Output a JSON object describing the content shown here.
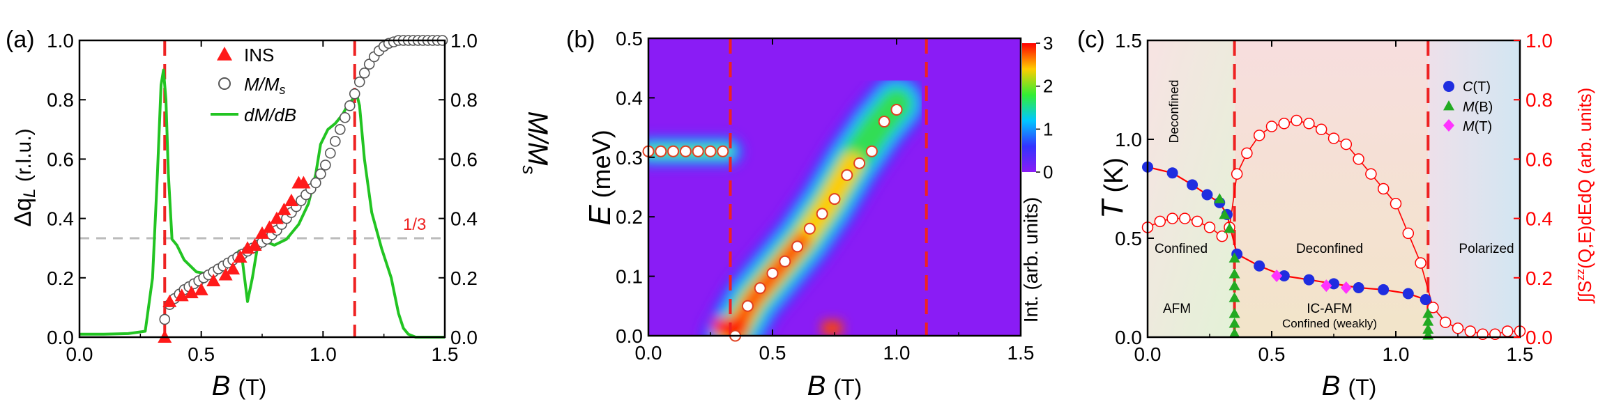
{
  "colors": {
    "ins": "#ff1a1a",
    "circle_edge": "#555555",
    "dmdb": "#22c422",
    "dashed_red": "#ee2222",
    "dashed_grey": "#bbbbbb",
    "right_axis_red": "#ff0000",
    "c_t": "#1f2de0",
    "m_b": "#22aa22",
    "m_t": "#ff33ff",
    "background_purple": "#8a1cf5"
  },
  "chart_data": [
    {
      "panel": "(a)",
      "type": "scatter",
      "xlabel_main": "B",
      "xlabel_unit": "(T)",
      "ylabel_left_main": "Δq",
      "ylabel_left_sub": "L",
      "ylabel_left_unit": "(r.l.u.)",
      "ylabel_right_main": "M/M",
      "ylabel_right_sub": "s",
      "xlim": [
        0,
        1.5
      ],
      "ylim_left": [
        0,
        1.0
      ],
      "ylim_right": [
        0,
        1.0
      ],
      "xticks": [
        "0.0",
        "0.5",
        "1.0",
        "1.5"
      ],
      "yticks_left": [
        "0.0",
        "0.2",
        "0.4",
        "0.6",
        "0.8",
        "1.0"
      ],
      "yticks_right": [
        "0.0",
        "0.2",
        "0.4",
        "0.6",
        "0.8",
        "1.0"
      ],
      "reference_line_label": "1/3",
      "reference_line_y": 0.3333,
      "vertical_lines_x": [
        0.35,
        1.13
      ],
      "legend": [
        {
          "label": "INS",
          "marker": "triangle"
        },
        {
          "label_main": "M/M",
          "label_sub": "s",
          "marker": "circle"
        },
        {
          "label_main": "dM/dB",
          "marker": "line"
        }
      ],
      "series": [
        {
          "name": "INS",
          "axis": "left",
          "x": [
            0.35,
            0.37,
            0.42,
            0.46,
            0.5,
            0.55,
            0.6,
            0.63,
            0.66,
            0.69,
            0.72,
            0.75,
            0.78,
            0.81,
            0.84,
            0.87,
            0.9,
            0.92
          ],
          "y": [
            0.0,
            0.12,
            0.14,
            0.15,
            0.16,
            0.19,
            0.21,
            0.23,
            0.27,
            0.3,
            0.31,
            0.35,
            0.37,
            0.4,
            0.43,
            0.46,
            0.52,
            0.52
          ]
        },
        {
          "name": "M/Ms",
          "axis": "right",
          "x": [
            0.35,
            0.37,
            0.39,
            0.41,
            0.43,
            0.45,
            0.47,
            0.49,
            0.51,
            0.53,
            0.55,
            0.57,
            0.59,
            0.61,
            0.63,
            0.65,
            0.67,
            0.69,
            0.71,
            0.73,
            0.75,
            0.77,
            0.79,
            0.81,
            0.83,
            0.85,
            0.87,
            0.89,
            0.91,
            0.93,
            0.95,
            0.97,
            0.99,
            1.01,
            1.03,
            1.05,
            1.07,
            1.09,
            1.11,
            1.13,
            1.15,
            1.17,
            1.19,
            1.21,
            1.23,
            1.25,
            1.27,
            1.29,
            1.31,
            1.33,
            1.35,
            1.37,
            1.39,
            1.41,
            1.43,
            1.45,
            1.47,
            1.49
          ],
          "y": [
            0.06,
            0.11,
            0.13,
            0.145,
            0.16,
            0.17,
            0.18,
            0.19,
            0.2,
            0.21,
            0.22,
            0.23,
            0.24,
            0.25,
            0.26,
            0.27,
            0.28,
            0.29,
            0.3,
            0.31,
            0.32,
            0.33,
            0.345,
            0.36,
            0.38,
            0.4,
            0.42,
            0.44,
            0.46,
            0.48,
            0.5,
            0.52,
            0.55,
            0.58,
            0.62,
            0.66,
            0.7,
            0.74,
            0.78,
            0.82,
            0.86,
            0.89,
            0.92,
            0.945,
            0.965,
            0.98,
            0.99,
            0.995,
            1.0,
            1.0,
            1.0,
            1.0,
            1.0,
            1.0,
            1.0,
            1.0,
            1.0,
            1.0
          ]
        },
        {
          "name": "dM/dB",
          "axis": "right",
          "x": [
            0.0,
            0.1,
            0.2,
            0.27,
            0.3,
            0.32,
            0.335,
            0.345,
            0.355,
            0.365,
            0.38,
            0.4,
            0.43,
            0.48,
            0.55,
            0.6,
            0.63,
            0.655,
            0.67,
            0.69,
            0.71,
            0.73,
            0.75,
            0.77,
            0.8,
            0.85,
            0.9,
            0.94,
            0.97,
            0.99,
            1.02,
            1.05,
            1.08,
            1.1,
            1.12,
            1.135,
            1.15,
            1.17,
            1.2,
            1.24,
            1.28,
            1.31,
            1.33,
            1.35,
            1.38,
            1.42,
            1.5
          ],
          "y": [
            0.01,
            0.01,
            0.012,
            0.02,
            0.2,
            0.55,
            0.85,
            0.9,
            0.8,
            0.55,
            0.33,
            0.31,
            0.26,
            0.22,
            0.21,
            0.23,
            0.27,
            0.29,
            0.25,
            0.12,
            0.2,
            0.3,
            0.34,
            0.32,
            0.31,
            0.33,
            0.38,
            0.45,
            0.55,
            0.65,
            0.7,
            0.72,
            0.75,
            0.78,
            0.8,
            0.83,
            0.78,
            0.6,
            0.42,
            0.3,
            0.2,
            0.08,
            0.03,
            0.01,
            0.0,
            0.0,
            0.0
          ]
        }
      ]
    },
    {
      "panel": "(b)",
      "type": "heatmap",
      "xlabel_main": "B",
      "xlabel_unit": "(T)",
      "ylabel_main": "E",
      "ylabel_unit": "(meV)",
      "xlim": [
        0,
        1.5
      ],
      "ylim": [
        0,
        0.5
      ],
      "xticks": [
        "0.0",
        "0.5",
        "1.0",
        "1.5"
      ],
      "yticks": [
        "0.0",
        "0.1",
        "0.2",
        "0.3",
        "0.4",
        "0.5"
      ],
      "colorbar_label": "Int. (arb. units)",
      "colorbar_range": [
        0,
        3
      ],
      "colorbar_ticks": [
        "0",
        "1",
        "2",
        "3"
      ],
      "vertical_lines_x": [
        0.33,
        1.12
      ],
      "series": [
        {
          "name": "",
          "x": [
            0.0,
            0.05,
            0.1,
            0.15,
            0.2,
            0.25,
            0.3
          ],
          "y": [
            0.31,
            0.31,
            0.31,
            0.31,
            0.31,
            0.31,
            0.31
          ]
        },
        {
          "name": "",
          "x": [
            0.35,
            0.4,
            0.45,
            0.5,
            0.55,
            0.6,
            0.65,
            0.7,
            0.75,
            0.8,
            0.85,
            0.9,
            0.95,
            1.0
          ],
          "y": [
            0.0,
            0.05,
            0.08,
            0.105,
            0.125,
            0.15,
            0.18,
            0.205,
            0.23,
            0.27,
            0.29,
            0.31,
            0.36,
            0.38
          ]
        }
      ]
    },
    {
      "panel": "(c)",
      "type": "scatter",
      "xlabel_main": "B",
      "xlabel_unit": "(T)",
      "ylabel_left_main": "T",
      "ylabel_left_unit": "(K)",
      "ylabel_right": "∫∫S",
      "ylabel_right_sup": "zz",
      "ylabel_right_rest": "(Q,E)dEdQ (arb. units)",
      "xlim": [
        0,
        1.5
      ],
      "ylim_left": [
        0,
        1.5
      ],
      "ylim_right": [
        0,
        1.0
      ],
      "xticks": [
        "0.0",
        "0.5",
        "1.0",
        "1.5"
      ],
      "yticks_left": [
        "0.0",
        "0.5",
        "1.0",
        "1.5"
      ],
      "yticks_right": [
        "0.0",
        "0.2",
        "0.4",
        "0.6",
        "0.8",
        "1.0"
      ],
      "vertical_lines_x": [
        0.35,
        1.13
      ],
      "region_labels": [
        "Deconfined",
        "Confined",
        "Deconfined",
        "Polarized",
        "AFM",
        "IC-AFM",
        "Confined (weakly)"
      ],
      "legend": [
        {
          "label_main": "C",
          "label_rest": "(T)",
          "marker": "circle"
        },
        {
          "label_main": "M",
          "label_rest": "(B)",
          "marker": "triangle"
        },
        {
          "label_main": "M",
          "label_rest": "(T)",
          "marker": "diamond"
        }
      ],
      "series": [
        {
          "name": "C(T)",
          "axis": "left",
          "x": [
            0.0,
            0.1,
            0.18,
            0.24,
            0.29,
            0.32,
            0.36,
            0.45,
            0.55,
            0.65,
            0.75,
            0.85,
            0.95,
            1.05,
            1.12
          ],
          "y": [
            0.86,
            0.83,
            0.77,
            0.72,
            0.68,
            0.62,
            0.42,
            0.36,
            0.31,
            0.29,
            0.27,
            0.25,
            0.24,
            0.22,
            0.19
          ]
        },
        {
          "name": "M(B)",
          "axis": "left",
          "x": [
            0.29,
            0.31,
            0.33,
            0.35,
            0.35,
            0.35,
            0.35,
            0.35,
            0.35,
            0.35,
            1.13,
            1.13,
            1.13,
            1.13
          ],
          "y": [
            0.7,
            0.62,
            0.55,
            0.4,
            0.32,
            0.26,
            0.2,
            0.12,
            0.07,
            0.02,
            0.12,
            0.08,
            0.04,
            0.01
          ]
        },
        {
          "name": "M(T)",
          "axis": "left",
          "x": [
            0.52,
            0.72,
            0.8
          ],
          "y": [
            0.31,
            0.26,
            0.25
          ]
        },
        {
          "name": "",
          "axis": "right",
          "x": [
            0.0,
            0.05,
            0.1,
            0.15,
            0.2,
            0.25,
            0.3,
            0.33,
            0.36,
            0.4,
            0.45,
            0.5,
            0.55,
            0.6,
            0.65,
            0.7,
            0.75,
            0.8,
            0.85,
            0.9,
            0.95,
            1.0,
            1.05,
            1.1,
            1.15,
            1.2,
            1.25,
            1.3,
            1.35,
            1.4,
            1.45,
            1.5
          ],
          "y": [
            0.37,
            0.39,
            0.4,
            0.4,
            0.39,
            0.37,
            0.34,
            0.37,
            0.55,
            0.62,
            0.68,
            0.71,
            0.72,
            0.73,
            0.72,
            0.7,
            0.67,
            0.65,
            0.6,
            0.55,
            0.5,
            0.45,
            0.35,
            0.25,
            0.1,
            0.05,
            0.03,
            0.02,
            0.01,
            0.01,
            0.02,
            0.02
          ]
        }
      ]
    }
  ]
}
